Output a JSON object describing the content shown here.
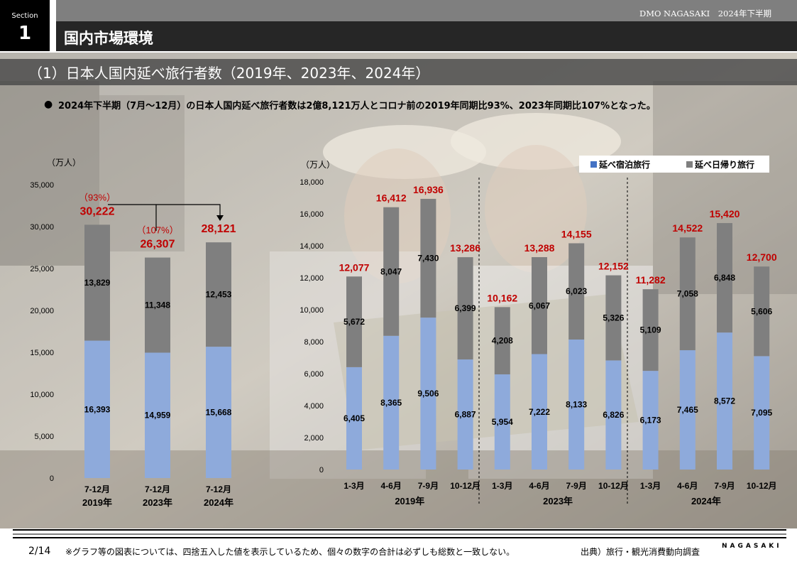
{
  "header": {
    "section_label": "Section",
    "section_number": "1",
    "brand": "DMO NAGASAKI　2024年下半期",
    "page_title": "国内市場環境",
    "subtitle": "（1）日本人国内延べ旅行者数（2019年、2023年、2024年）"
  },
  "summary": {
    "bullet": "●",
    "text": "2024年下半期（7月～12月）の日本人国内延べ旅行者数は2億8,121万人とコロナ前の2019年同期比93%、2023年同期比107%となった。"
  },
  "footer": {
    "page": "2/14",
    "note": "※グラフ等の図表については、四捨五入した値を表示しているため、個々の数字の合計は必ずしも総数と一致しない。",
    "source": "出典）旅行・観光消費動向調査",
    "logo": "NAGASAKI"
  },
  "colors": {
    "overnight": "#8eaadb",
    "day_trip": "#7f7f7f",
    "total_label": "#c00000"
  },
  "chart_data": [
    {
      "type": "bar",
      "stacked": true,
      "unit_label": "（万人）",
      "ylim": [
        0,
        35000
      ],
      "yticks": [
        "0",
        "5,000",
        "10,000",
        "15,000",
        "20,000",
        "25,000",
        "30,000",
        "35,000"
      ],
      "categories": [
        "7-12月",
        "7-12月",
        "7-12月"
      ],
      "groups": [
        "2019年",
        "2023年",
        "2024年"
      ],
      "series": [
        {
          "values": [
            16393,
            14959,
            15668
          ],
          "labels": [
            "16,393",
            "14,959",
            "15,668"
          ]
        },
        {
          "values": [
            13829,
            11348,
            12453
          ],
          "labels": [
            "13,829",
            "11,348",
            "12,453"
          ]
        }
      ],
      "totals": [
        "30,222",
        "26,307",
        "28,121"
      ],
      "ratios": [
        "（93%）",
        "（107%）",
        ""
      ]
    },
    {
      "type": "bar",
      "stacked": true,
      "unit_label": "（万人）",
      "ylim": [
        0,
        18000
      ],
      "yticks": [
        "0",
        "2,000",
        "4,000",
        "6,000",
        "8,000",
        "10,000",
        "12,000",
        "14,000",
        "16,000",
        "18,000"
      ],
      "categories": [
        "1-3月",
        "4-6月",
        "7-9月",
        "10-12月",
        "1-3月",
        "4-6月",
        "7-9月",
        "10-12月",
        "1-3月",
        "4-6月",
        "7-9月",
        "10-12月"
      ],
      "groups": [
        "2019年",
        "2023年",
        "2024年"
      ],
      "series": [
        {
          "name": "延べ宿泊旅行",
          "values": [
            6405,
            8365,
            9506,
            6887,
            5954,
            7222,
            8133,
            6826,
            6173,
            7465,
            8572,
            7095
          ],
          "labels": [
            "6,405",
            "8,365",
            "9,506",
            "6,887",
            "5,954",
            "7,222",
            "8,133",
            "6,826",
            "6,173",
            "7,465",
            "8,572",
            "7,095"
          ]
        },
        {
          "name": "延べ日帰り旅行",
          "values": [
            5672,
            8047,
            7430,
            6399,
            4208,
            6067,
            6023,
            5326,
            5109,
            7058,
            6848,
            5606
          ],
          "labels": [
            "5,672",
            "8,047",
            "7,430",
            "6,399",
            "4,208",
            "6,067",
            "6,023",
            "5,326",
            "5,109",
            "7,058",
            "6,848",
            "5,606"
          ]
        }
      ],
      "totals": [
        "12,077",
        "16,412",
        "16,936",
        "13,286",
        "10,162",
        "13,288",
        "14,155",
        "12,152",
        "11,282",
        "14,522",
        "15,420",
        "12,700"
      ]
    }
  ]
}
